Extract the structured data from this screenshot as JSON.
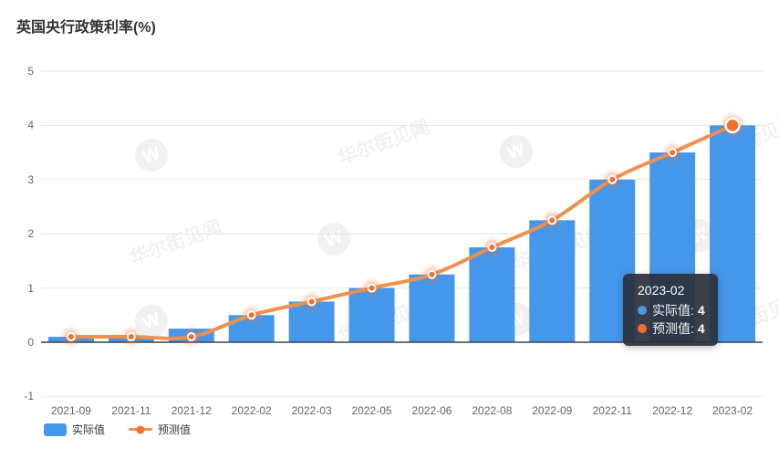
{
  "title": "英国央行政策利率(%)",
  "watermark": {
    "text": "华尔街见闻",
    "logo_letter": "W"
  },
  "colors": {
    "bar": "#4597EB",
    "line": "#F0904E",
    "dot": "#F2702A",
    "grid": "#E4E4E4",
    "zero_axis": "#3B4048",
    "axis_label": "#5F656B",
    "tooltip_bg": "rgba(43,50,60,0.93)"
  },
  "chart_data": {
    "type": "bar",
    "subtype": "bar+line combo",
    "title": "英国央行政策利率(%)",
    "categories": [
      "2021-09",
      "2021-11",
      "2021-12",
      "2022-02",
      "2022-03",
      "2022-05",
      "2022-06",
      "2022-08",
      "2022-09",
      "2022-11",
      "2022-12",
      "2023-02"
    ],
    "series": [
      {
        "name": "实际值",
        "type": "bar",
        "color": "#4597EB",
        "values": [
          0.1,
          0.1,
          0.25,
          0.5,
          0.75,
          1.0,
          1.25,
          1.75,
          2.25,
          3.0,
          3.5,
          4.0
        ]
      },
      {
        "name": "预测值",
        "type": "line",
        "smooth": true,
        "color": "#F0904E",
        "values": [
          0.1,
          0.1,
          0.1,
          0.5,
          0.75,
          1.0,
          1.25,
          1.75,
          2.25,
          3.0,
          3.5,
          4.0
        ]
      }
    ],
    "xlabel": "",
    "ylabel": "",
    "ylim": [
      -1,
      5
    ],
    "yticks": [
      -1,
      0,
      1,
      2,
      3,
      4,
      5
    ],
    "grid": true,
    "legend_position": "bottom-left",
    "highlighted_index": 11
  },
  "tooltip": {
    "title": "2023-02",
    "rows": [
      {
        "label": "实际值",
        "value": "4",
        "marker_color": "#4597EB"
      },
      {
        "label": "预测值",
        "value": "4",
        "marker_color": "#F2702A"
      }
    ]
  }
}
